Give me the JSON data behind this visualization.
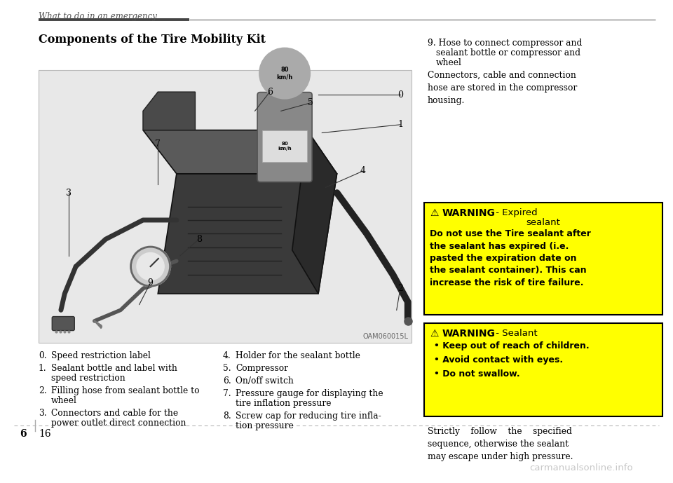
{
  "page_header": "What to do in an emergency",
  "section_title": "Components of the Tire Mobility Kit",
  "image_caption": "OAM060015L",
  "right_text_1a": "9. Hose to connect compressor and",
  "right_text_1b": "   sealant bottle or compressor and",
  "right_text_1c": "   wheel",
  "right_text_2": "Connectors, cable and connection\nhose are stored in the compressor\nhousing.",
  "warning1_body": "Do not use the Tire sealant after\nthe sealant has expired (i.e.\npasted the expiration date on\nthe sealant container). This can\nincrease the risk of tire failure.",
  "warning2_bullets": [
    "Keep out of reach of children.",
    "Avoid contact with eyes.",
    "Do not swallow."
  ],
  "bottom_text": "Strictly    follow    the    specified\nsequence, otherwise the sealant\nmay escape under high pressure.",
  "left_items_raw": [
    {
      "num": "0.",
      "text": "Speed restriction label",
      "indent": false
    },
    {
      "num": "1.",
      "text": "Sealant bottle and label with",
      "text2": "speed restriction",
      "indent": true
    },
    {
      "num": "2.",
      "text": "Filling hose from sealant bottle to",
      "text2": "wheel",
      "indent": true
    },
    {
      "num": "3.",
      "text": "Connectors and cable for the",
      "text2": "power outlet direct connection",
      "indent": true
    }
  ],
  "right_items_raw": [
    {
      "num": "4.",
      "text": "Holder for the sealant bottle",
      "text2": null
    },
    {
      "num": "5.",
      "text": "Compressor",
      "text2": null
    },
    {
      "num": "6.",
      "text": "On/off switch",
      "text2": null
    },
    {
      "num": "7.",
      "text": "Pressure gauge for displaying the",
      "text2": "tire inflation pressure",
      "indent": true
    },
    {
      "num": "8.",
      "text": "Screw cap for reducing tire infla-",
      "text2": "tion pressure",
      "indent": true
    }
  ],
  "page_num_left": "6",
  "page_num_right": "16",
  "bg_color": "#ffffff",
  "warning_bg": "#ffff00",
  "warning_border": "#000000",
  "watermark_text": "carmanualsonline.info",
  "watermark_color": "#c8c8c8",
  "img_bg": "#e8e8e8",
  "img_border": "#bbbbbb"
}
